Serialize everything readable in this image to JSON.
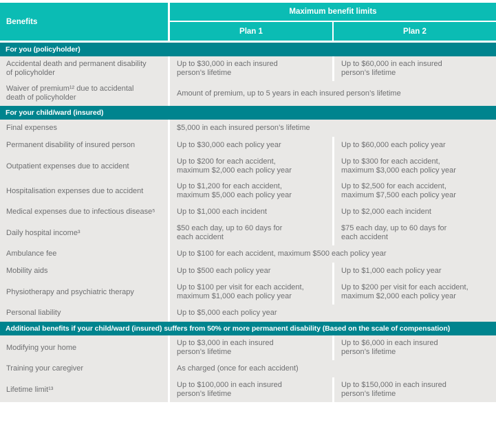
{
  "colors": {
    "teal_bright": "#0bbcb4",
    "teal_dark": "#00848e",
    "row_bg": "#e9e8e6",
    "row_text": "#6e6f71",
    "header_text": "#ffffff"
  },
  "header": {
    "benefits_label": "Benefits",
    "max_benefit_label": "Maximum benefit limits",
    "plan1_label": "Plan 1",
    "plan2_label": "Plan 2"
  },
  "sections": [
    {
      "title": "For you (policyholder)",
      "rows": [
        {
          "benefit": "Accidental death and permanent disability\nof policyholder",
          "plan1": "Up to $30,000 in each insured\nperson’s lifetime",
          "plan2": "Up to $60,000 in each insured\nperson’s lifetime",
          "span": false
        },
        {
          "benefit": "Waiver of premium¹² due to accidental\ndeath of policyholder",
          "value": "Amount of premium, up to 5 years in each insured person’s lifetime",
          "span": true
        }
      ]
    },
    {
      "title": "For your child/ward (insured)",
      "rows": [
        {
          "benefit": "Final expenses",
          "value": "$5,000 in each insured person’s lifetime",
          "span": true
        },
        {
          "benefit": "Permanent disability of insured person",
          "plan1": "Up to $30,000 each policy year",
          "plan2": "Up to $60,000 each policy year",
          "span": false
        },
        {
          "benefit": "Outpatient expenses due to accident",
          "plan1": "Up to $200 for each accident,\nmaximum $2,000 each policy year",
          "plan2": "Up to $300 for each accident,\nmaximum $3,000 each policy year",
          "span": false
        },
        {
          "benefit": "Hospitalisation expenses due to accident",
          "plan1": "Up to $1,200 for each accident,\nmaximum $5,000 each policy year",
          "plan2": "Up to $2,500 for each accident,\nmaximum $7,500 each policy year",
          "span": false
        },
        {
          "benefit": "Medical expenses due to infectious disease⁵",
          "plan1": "Up to $1,000 each incident",
          "plan2": "Up to $2,000 each incident",
          "span": false
        },
        {
          "benefit": "Daily hospital income³",
          "plan1": "$50 each day, up to 60 days for\neach accident",
          "plan2": "$75 each day, up to 60 days for\neach accident",
          "span": false
        },
        {
          "benefit": "Ambulance fee",
          "value": "Up to $100 for each accident, maximum $500 each policy year",
          "span": true
        },
        {
          "benefit": "Mobility aids",
          "plan1": "Up to $500 each policy year",
          "plan2": "Up to $1,000 each policy year",
          "span": false
        },
        {
          "benefit": "Physiotherapy and psychiatric therapy",
          "plan1": "Up to $100 per visit for each accident,\nmaximum $1,000 each policy year",
          "plan2": "Up to $200 per visit for each accident,\nmaximum $2,000 each policy year",
          "span": false
        },
        {
          "benefit": "Personal liability",
          "value": "Up to $5,000 each policy year",
          "span": true
        }
      ]
    },
    {
      "title": "Additional benefits if your child/ward (insured) suffers from 50% or more permanent disability (Based on the scale of compensation)",
      "rows": [
        {
          "benefit": "Modifying your home",
          "plan1": "Up to $3,000 in each insured\nperson’s lifetime",
          "plan2": "Up to $6,000 in each insured\nperson’s lifetime",
          "span": false
        },
        {
          "benefit": "Training your caregiver",
          "value": "As charged (once for each accident)",
          "span": true
        },
        {
          "benefit": "Lifetime limit¹³",
          "plan1": "Up to $100,000 in each insured\nperson’s lifetime",
          "plan2": "Up to $150,000 in each insured\nperson’s lifetime",
          "span": false
        }
      ]
    }
  ]
}
